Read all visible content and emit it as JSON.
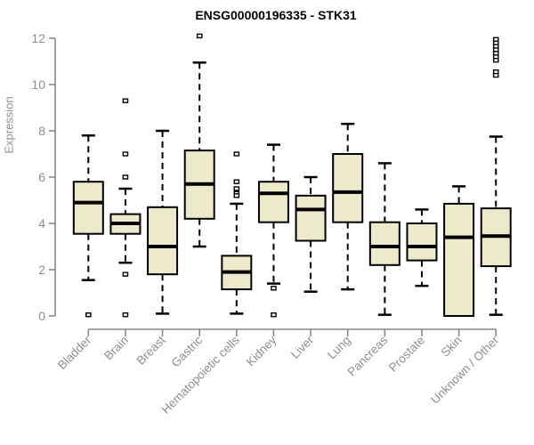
{
  "chart_data": {
    "type": "boxplot",
    "title": "ENSG00000196335 - STK31",
    "xlabel": "",
    "ylabel": "Expression",
    "ylim": [
      0,
      12
    ],
    "yticks": [
      0,
      2,
      4,
      6,
      8,
      10,
      12
    ],
    "grid": false,
    "legend": null,
    "categories": [
      "Bladder",
      "Brain",
      "Breast",
      "Gastric",
      "Hematopoietic cells",
      "Kidney",
      "Liver",
      "Lung",
      "Pancreas",
      "Prostate",
      "Skin",
      "Unknown / Other"
    ],
    "boxes": [
      {
        "label": "Bladder",
        "whisker_low": 1.55,
        "q1": 3.55,
        "median": 4.9,
        "q3": 5.8,
        "whisker_high": 7.8,
        "outliers": [
          0.05
        ]
      },
      {
        "label": "Brain",
        "whisker_low": 2.3,
        "q1": 3.55,
        "median": 4.0,
        "q3": 4.4,
        "whisker_high": 5.5,
        "outliers": [
          9.3,
          7.0,
          6.0,
          1.8,
          0.05
        ]
      },
      {
        "label": "Breast",
        "whisker_low": 0.1,
        "q1": 1.8,
        "median": 3.0,
        "q3": 4.7,
        "whisker_high": 8.0,
        "outliers": []
      },
      {
        "label": "Gastric",
        "whisker_low": 3.0,
        "q1": 4.2,
        "median": 5.7,
        "q3": 7.15,
        "whisker_high": 10.95,
        "outliers": [
          12.1
        ]
      },
      {
        "label": "Hematopoietic cells",
        "whisker_low": 0.1,
        "q1": 1.15,
        "median": 1.9,
        "q3": 2.6,
        "whisker_high": 4.85,
        "outliers": [
          7.0,
          5.8,
          5.5,
          5.3,
          5.2
        ]
      },
      {
        "label": "Kidney",
        "whisker_low": 1.4,
        "q1": 4.05,
        "median": 5.3,
        "q3": 5.8,
        "whisker_high": 7.4,
        "outliers": [
          1.2,
          0.05
        ]
      },
      {
        "label": "Liver",
        "whisker_low": 1.05,
        "q1": 3.25,
        "median": 4.6,
        "q3": 5.2,
        "whisker_high": 6.0,
        "outliers": []
      },
      {
        "label": "Lung",
        "whisker_low": 1.15,
        "q1": 4.05,
        "median": 5.35,
        "q3": 7.0,
        "whisker_high": 8.3,
        "outliers": []
      },
      {
        "label": "Pancreas",
        "whisker_low": 0.05,
        "q1": 2.2,
        "median": 3.0,
        "q3": 4.05,
        "whisker_high": 6.6,
        "outliers": []
      },
      {
        "label": "Prostate",
        "whisker_low": 1.3,
        "q1": 2.4,
        "median": 3.0,
        "q3": 4.0,
        "whisker_high": 4.6,
        "outliers": []
      },
      {
        "label": "Skin",
        "whisker_low": 0.0,
        "q1": 0.0,
        "median": 3.4,
        "q3": 4.85,
        "whisker_high": 5.6,
        "outliers": []
      },
      {
        "label": "Unknown / Other",
        "whisker_low": 0.05,
        "q1": 2.15,
        "median": 3.45,
        "q3": 4.65,
        "whisker_high": 7.75,
        "outliers": [
          11.95,
          11.8,
          11.65,
          11.5,
          11.35,
          11.2,
          11.05,
          10.55,
          10.4
        ]
      }
    ],
    "colors": {
      "box_fill": "#EDE9CB",
      "box_border": "#000000",
      "median": "#000000",
      "whisker": "#000000",
      "outlier_border": "#000000",
      "outlier_fill": "#ffffff",
      "axis": "#888888",
      "tick_label": "#8e8e8e",
      "title": "#000000",
      "background": "#ffffff"
    }
  }
}
